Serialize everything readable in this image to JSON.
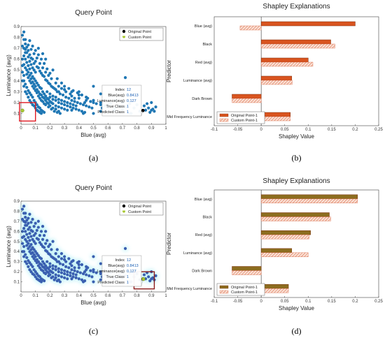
{
  "colors": {
    "scatter_point": "#1f77b4",
    "scatter_glow": "#bff2f7",
    "original_point": "#000000",
    "custom_point": "#a8c832",
    "box_red": "#e01b24",
    "box_darkred": "#8b1a1a",
    "bar_orange": "#d9541f",
    "bar_orange_edge": "#7a2b0a",
    "bar_olive": "#8c6d1f",
    "bar_hatch": "#f2b9a3",
    "bar_hatch_edge": "#d96b4a"
  },
  "chart_data": [
    {
      "id": "a",
      "type": "scatter",
      "caption": "(a)",
      "title": "Query Point",
      "xlabel": "Blue (avg)",
      "ylabel": "Luminance (avg)",
      "xlim": [
        0,
        1
      ],
      "ylim": [
        0,
        0.9
      ],
      "xticks": [
        "0",
        "0.1",
        "0.2",
        "0.3",
        "0.4",
        "0.5",
        "0.6",
        "0.7",
        "0.8",
        "0.9",
        "1"
      ],
      "yticks": [
        "0.1",
        "0.2",
        "0.3",
        "0.4",
        "0.5",
        "0.6",
        "0.7",
        "0.8",
        "0.9"
      ],
      "legend": [
        "Original Point",
        "Custom Point"
      ],
      "original_point": [
        0.8413,
        0.127
      ],
      "custom_point": [
        0.01,
        0.127
      ],
      "highlight_box": {
        "x": [
          -0.01,
          0.1
        ],
        "y": [
          0.03,
          0.2
        ],
        "color": "red"
      },
      "tooltip": [
        {
          "label": "Index",
          "value": "12"
        },
        {
          "label": "Blue(avg)",
          "value": "0.8413"
        },
        {
          "label": "Luminance(avg)",
          "value": "0.127"
        },
        {
          "label": "True Class",
          "value": "1"
        },
        {
          "label": "Predicted Class",
          "value": "1"
        }
      ],
      "points": [
        [
          0.01,
          0.82
        ],
        [
          0.02,
          0.78
        ],
        [
          0.03,
          0.74
        ],
        [
          0.03,
          0.69
        ],
        [
          0.04,
          0.66
        ],
        [
          0.05,
          0.62
        ],
        [
          0.06,
          0.58
        ],
        [
          0.07,
          0.55
        ],
        [
          0.08,
          0.52
        ],
        [
          0.09,
          0.5
        ],
        [
          0.1,
          0.48
        ],
        [
          0.02,
          0.63
        ],
        [
          0.03,
          0.6
        ],
        [
          0.04,
          0.57
        ],
        [
          0.05,
          0.54
        ],
        [
          0.06,
          0.51
        ],
        [
          0.07,
          0.47
        ],
        [
          0.08,
          0.44
        ],
        [
          0.09,
          0.42
        ],
        [
          0.1,
          0.4
        ],
        [
          0.11,
          0.38
        ],
        [
          0.12,
          0.36
        ],
        [
          0.13,
          0.34
        ],
        [
          0.14,
          0.33
        ],
        [
          0.15,
          0.3
        ],
        [
          0.16,
          0.28
        ],
        [
          0.17,
          0.26
        ],
        [
          0.18,
          0.24
        ],
        [
          0.19,
          0.23
        ],
        [
          0.2,
          0.21
        ],
        [
          0.21,
          0.2
        ],
        [
          0.22,
          0.19
        ],
        [
          0.24,
          0.17
        ],
        [
          0.26,
          0.16
        ],
        [
          0.28,
          0.15
        ],
        [
          0.3,
          0.14
        ],
        [
          0.32,
          0.13
        ],
        [
          0.04,
          0.5
        ],
        [
          0.05,
          0.48
        ],
        [
          0.06,
          0.45
        ],
        [
          0.07,
          0.42
        ],
        [
          0.08,
          0.39
        ],
        [
          0.09,
          0.37
        ],
        [
          0.1,
          0.35
        ],
        [
          0.11,
          0.32
        ],
        [
          0.12,
          0.3
        ],
        [
          0.13,
          0.28
        ],
        [
          0.14,
          0.27
        ],
        [
          0.15,
          0.25
        ],
        [
          0.16,
          0.24
        ],
        [
          0.17,
          0.22
        ],
        [
          0.18,
          0.2
        ],
        [
          0.19,
          0.19
        ],
        [
          0.2,
          0.17
        ],
        [
          0.22,
          0.15
        ],
        [
          0.24,
          0.14
        ],
        [
          0.26,
          0.12
        ],
        [
          0.02,
          0.55
        ],
        [
          0.03,
          0.52
        ],
        [
          0.04,
          0.46
        ],
        [
          0.05,
          0.43
        ],
        [
          0.06,
          0.4
        ],
        [
          0.07,
          0.38
        ],
        [
          0.08,
          0.35
        ],
        [
          0.09,
          0.33
        ],
        [
          0.1,
          0.31
        ],
        [
          0.11,
          0.29
        ],
        [
          0.12,
          0.26
        ],
        [
          0.13,
          0.24
        ],
        [
          0.14,
          0.22
        ],
        [
          0.15,
          0.21
        ],
        [
          0.16,
          0.19
        ],
        [
          0.17,
          0.18
        ],
        [
          0.19,
          0.16
        ],
        [
          0.21,
          0.14
        ],
        [
          0.23,
          0.12
        ],
        [
          0.25,
          0.11
        ],
        [
          0.27,
          0.1
        ],
        [
          0.18,
          0.3
        ],
        [
          0.2,
          0.28
        ],
        [
          0.22,
          0.26
        ],
        [
          0.24,
          0.25
        ],
        [
          0.26,
          0.23
        ],
        [
          0.28,
          0.22
        ],
        [
          0.3,
          0.21
        ],
        [
          0.32,
          0.2
        ],
        [
          0.34,
          0.19
        ],
        [
          0.36,
          0.18
        ],
        [
          0.38,
          0.17
        ],
        [
          0.2,
          0.25
        ],
        [
          0.22,
          0.23
        ],
        [
          0.24,
          0.22
        ],
        [
          0.26,
          0.2
        ],
        [
          0.28,
          0.19
        ],
        [
          0.3,
          0.18
        ],
        [
          0.32,
          0.17
        ],
        [
          0.34,
          0.16
        ],
        [
          0.36,
          0.15
        ],
        [
          0.38,
          0.14
        ],
        [
          0.4,
          0.13
        ],
        [
          0.42,
          0.12
        ],
        [
          0.44,
          0.11
        ],
        [
          0.25,
          0.3
        ],
        [
          0.27,
          0.28
        ],
        [
          0.29,
          0.27
        ],
        [
          0.31,
          0.25
        ],
        [
          0.33,
          0.24
        ],
        [
          0.35,
          0.22
        ],
        [
          0.37,
          0.21
        ],
        [
          0.39,
          0.2
        ],
        [
          0.41,
          0.19
        ],
        [
          0.43,
          0.18
        ],
        [
          0.45,
          0.17
        ],
        [
          0.47,
          0.16
        ],
        [
          0.49,
          0.15
        ],
        [
          0.3,
          0.32
        ],
        [
          0.35,
          0.3
        ],
        [
          0.4,
          0.27
        ],
        [
          0.45,
          0.25
        ],
        [
          0.5,
          0.22
        ],
        [
          0.55,
          0.2
        ],
        [
          0.6,
          0.18
        ],
        [
          0.35,
          0.26
        ],
        [
          0.4,
          0.24
        ],
        [
          0.45,
          0.22
        ],
        [
          0.5,
          0.2
        ],
        [
          0.55,
          0.18
        ],
        [
          0.6,
          0.16
        ],
        [
          0.65,
          0.15
        ],
        [
          0.4,
          0.3
        ],
        [
          0.5,
          0.35
        ],
        [
          0.55,
          0.28
        ],
        [
          0.65,
          0.22
        ],
        [
          0.7,
          0.2
        ],
        [
          0.75,
          0.19
        ],
        [
          0.8,
          0.18
        ],
        [
          0.08,
          0.6
        ],
        [
          0.1,
          0.58
        ],
        [
          0.12,
          0.52
        ],
        [
          0.14,
          0.47
        ],
        [
          0.16,
          0.44
        ],
        [
          0.18,
          0.4
        ],
        [
          0.2,
          0.37
        ],
        [
          0.22,
          0.34
        ],
        [
          0.24,
          0.32
        ],
        [
          0.26,
          0.3
        ],
        [
          0.01,
          0.72
        ],
        [
          0.02,
          0.7
        ],
        [
          0.03,
          0.66
        ],
        [
          0.04,
          0.71
        ],
        [
          0.05,
          0.68
        ],
        [
          0.06,
          0.64
        ],
        [
          0.07,
          0.61
        ],
        [
          0.09,
          0.56
        ],
        [
          0.11,
          0.53
        ],
        [
          0.13,
          0.49
        ],
        [
          0.15,
          0.45
        ],
        [
          0.17,
          0.41
        ],
        [
          0.19,
          0.38
        ],
        [
          0.21,
          0.35
        ],
        [
          0.23,
          0.33
        ],
        [
          0.01,
          0.6
        ],
        [
          0.01,
          0.54
        ],
        [
          0.01,
          0.48
        ],
        [
          0.02,
          0.45
        ],
        [
          0.02,
          0.4
        ],
        [
          0.03,
          0.37
        ],
        [
          0.04,
          0.34
        ],
        [
          0.05,
          0.31
        ],
        [
          0.06,
          0.29
        ],
        [
          0.07,
          0.27
        ],
        [
          0.08,
          0.25
        ],
        [
          0.09,
          0.22
        ],
        [
          0.1,
          0.2
        ],
        [
          0.11,
          0.18
        ],
        [
          0.12,
          0.16
        ],
        [
          0.13,
          0.15
        ],
        [
          0.14,
          0.13
        ],
        [
          0.15,
          0.12
        ],
        [
          0.16,
          0.11
        ],
        [
          0.01,
          0.4
        ],
        [
          0.02,
          0.35
        ],
        [
          0.03,
          0.3
        ],
        [
          0.04,
          0.28
        ],
        [
          0.05,
          0.25
        ],
        [
          0.06,
          0.22
        ],
        [
          0.07,
          0.2
        ],
        [
          0.08,
          0.18
        ],
        [
          0.09,
          0.17
        ],
        [
          0.1,
          0.15
        ],
        [
          0.11,
          0.13
        ],
        [
          0.12,
          0.12
        ],
        [
          0.13,
          0.11
        ],
        [
          0.14,
          0.1
        ],
        [
          0.02,
          0.85
        ],
        [
          0.06,
          0.77
        ],
        [
          0.08,
          0.72
        ],
        [
          0.1,
          0.68
        ],
        [
          0.12,
          0.64
        ],
        [
          0.14,
          0.6
        ],
        [
          0.16,
          0.56
        ],
        [
          0.18,
          0.51
        ],
        [
          0.2,
          0.47
        ],
        [
          0.12,
          0.7
        ],
        [
          0.15,
          0.65
        ],
        [
          0.17,
          0.6
        ],
        [
          0.22,
          0.5
        ],
        [
          0.25,
          0.42
        ],
        [
          0.28,
          0.38
        ],
        [
          0.3,
          0.35
        ],
        [
          0.33,
          0.33
        ],
        [
          0.36,
          0.31
        ],
        [
          0.39,
          0.29
        ],
        [
          0.42,
          0.27
        ],
        [
          0.46,
          0.24
        ],
        [
          0.48,
          0.21
        ],
        [
          0.52,
          0.19
        ],
        [
          0.58,
          0.17
        ],
        [
          0.62,
          0.19
        ],
        [
          0.68,
          0.17
        ],
        [
          0.72,
          0.16
        ],
        [
          0.78,
          0.15
        ],
        [
          0.85,
          0.17
        ],
        [
          0.88,
          0.15
        ],
        [
          0.9,
          0.13
        ],
        [
          0.92,
          0.12
        ],
        [
          0.89,
          0.11
        ],
        [
          0.91,
          0.14
        ],
        [
          0.87,
          0.19
        ],
        [
          0.9,
          0.2
        ],
        [
          0.93,
          0.16
        ],
        [
          0.86,
          0.13
        ],
        [
          0.82,
          0.12
        ],
        [
          0.76,
          0.1
        ],
        [
          0.7,
          0.14
        ],
        [
          0.64,
          0.13
        ],
        [
          0.56,
          0.15
        ],
        [
          0.44,
          0.2
        ],
        [
          0.37,
          0.24
        ],
        [
          0.34,
          0.28
        ],
        [
          0.31,
          0.3
        ],
        [
          0.28,
          0.33
        ],
        [
          0.26,
          0.35
        ],
        [
          0.24,
          0.38
        ],
        [
          0.21,
          0.42
        ],
        [
          0.19,
          0.45
        ],
        [
          0.17,
          0.48
        ],
        [
          0.15,
          0.52
        ],
        [
          0.13,
          0.56
        ],
        [
          0.11,
          0.61
        ],
        [
          0.09,
          0.65
        ],
        [
          0.07,
          0.69
        ],
        [
          0.05,
          0.73
        ],
        [
          0.03,
          0.78
        ],
        [
          0.72,
          0.43
        ],
        [
          0.75,
          0.1
        ],
        [
          0.35,
          0.13
        ],
        [
          0.43,
          0.1
        ],
        [
          0.5,
          0.1
        ],
        [
          0.55,
          0.12
        ]
      ]
    },
    {
      "id": "b",
      "type": "bar",
      "orientation": "horizontal",
      "caption": "(b)",
      "title": "Shapley Explanations",
      "xlabel": "Shapley Value",
      "ylabel": "Predictor",
      "xlim": [
        -0.1,
        0.25
      ],
      "xticks": [
        "-0.1",
        "-0.05",
        "0",
        "0.05",
        "0.1",
        "0.15",
        "0.2",
        "0.25"
      ],
      "categories": [
        "Blue (avg)",
        "Black",
        "Red (avg)",
        "Luminance (avg)",
        "Dark Brown",
        "Mid Frequency Luminance"
      ],
      "series": [
        {
          "name": "Original Point-1",
          "values": [
            0.2,
            0.148,
            0.1,
            0.065,
            -0.062,
            0.062
          ]
        },
        {
          "name": "Custom Point-1",
          "values": [
            -0.045,
            0.157,
            0.11,
            0.066,
            -0.062,
            0.062
          ]
        }
      ]
    },
    {
      "id": "c",
      "type": "scatter",
      "caption": "(c)",
      "title": "Query Point",
      "xlabel": "Blue (avg)",
      "ylabel": "Luminance (avg)",
      "xlim": [
        0,
        1
      ],
      "ylim": [
        0,
        0.9
      ],
      "xticks": [
        "0",
        "0.1",
        "0.2",
        "0.3",
        "0.4",
        "0.5",
        "0.6",
        "0.7",
        "0.8",
        "0.9",
        "1"
      ],
      "yticks": [
        "0.1",
        "0.2",
        "0.3",
        "0.4",
        "0.5",
        "0.6",
        "0.7",
        "0.8",
        "0.9"
      ],
      "legend": [
        "Original Point",
        "Custom Point"
      ],
      "original_point": [
        0.8413,
        0.127
      ],
      "custom_point": [
        0.845,
        0.127
      ],
      "highlight_box": {
        "x": [
          0.78,
          0.92
        ],
        "y": [
          0.03,
          0.2
        ],
        "color": "darkred"
      },
      "tooltip": [
        {
          "label": "Index",
          "value": "12"
        },
        {
          "label": "Blue(avg)",
          "value": "0.8413"
        },
        {
          "label": "Luminance(avg)",
          "value": "0.127"
        },
        {
          "label": "True Class",
          "value": "1"
        },
        {
          "label": "Predicted Class",
          "value": "1"
        }
      ],
      "points": "same_as_a"
    },
    {
      "id": "d",
      "type": "bar",
      "orientation": "horizontal",
      "caption": "(d)",
      "title": "Shapley Explanations",
      "xlabel": "Shapley Value",
      "ylabel": "Predictor",
      "xlim": [
        -0.1,
        0.25
      ],
      "xticks": [
        "-0.1",
        "-0.05",
        "0",
        "0.05",
        "0.1",
        "0.15",
        "0.2",
        "0.25"
      ],
      "categories": [
        "Blue (avg)",
        "Black",
        "Red (avg)",
        "Luminance (avg)",
        "Dark Brown",
        "Mid Frequency Luminance"
      ],
      "series": [
        {
          "name": "Original Point-1",
          "values": [
            0.205,
            0.145,
            0.105,
            0.065,
            -0.062,
            0.058
          ]
        },
        {
          "name": "Custom Point-1",
          "values": [
            0.205,
            0.148,
            0.102,
            0.1,
            -0.062,
            0.058
          ]
        }
      ]
    }
  ]
}
